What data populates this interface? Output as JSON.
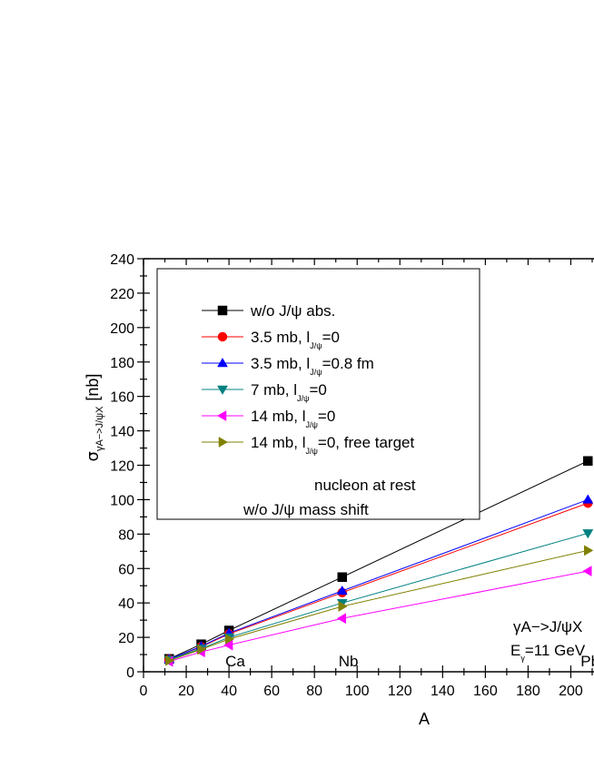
{
  "chart_data": {
    "type": "line",
    "xlabel": "A",
    "ylabel_main": "σ",
    "ylabel_sub": "γA−>J/ψX",
    "ylabel_unit": "[nb]",
    "xlim": [
      0,
      220
    ],
    "ylim": [
      0,
      240
    ],
    "xticks": [
      0,
      20,
      40,
      60,
      80,
      100,
      120,
      140,
      160,
      180,
      200
    ],
    "yticks": [
      0,
      20,
      40,
      60,
      80,
      100,
      120,
      140,
      160,
      180,
      200,
      220,
      240
    ],
    "grid": false,
    "legend_position": "top-left",
    "x": [
      12,
      27,
      40,
      93,
      208
    ],
    "series": [
      {
        "name": "w/o J/ψ abs.",
        "values": [
          7.5,
          16,
          24,
          55,
          122.5
        ],
        "color": "#000000",
        "marker": "square"
      },
      {
        "name": "3.5 mb, l_J/ψ=0",
        "values": [
          7.2,
          14.5,
          22,
          46,
          98
        ],
        "color": "#ff0000",
        "marker": "circle"
      },
      {
        "name": "3.5 mb, l_J/ψ=0.8 fm",
        "values": [
          7.2,
          14.8,
          22.5,
          47,
          100
        ],
        "color": "#0000ff",
        "marker": "triangle-up"
      },
      {
        "name": "7 mb, l_J/ψ=0",
        "values": [
          7,
          13.5,
          20,
          40,
          80.5
        ],
        "color": "#008080",
        "marker": "triangle-down"
      },
      {
        "name": "14 mb, l_J/ψ=0",
        "values": [
          6,
          11.5,
          15.5,
          31,
          58.5
        ],
        "color": "#ff00ff",
        "marker": "triangle-left"
      },
      {
        "name": "14 mb, l_J/ψ=0, free target",
        "values": [
          6.5,
          13,
          19,
          38,
          70.5
        ],
        "color": "#808000",
        "marker": "triangle-right"
      }
    ],
    "legend_entries": [
      {
        "pre": "w/o J/ψ abs.",
        "sub": "",
        "post": ""
      },
      {
        "pre": "3.5 mb, l",
        "sub": "J/ψ",
        "post": "=0"
      },
      {
        "pre": "3.5 mb, l",
        "sub": "J/ψ",
        "post": "=0.8 fm"
      },
      {
        "pre": "7 mb, l",
        "sub": "J/ψ",
        "post": "=0"
      },
      {
        "pre": "14 mb, l",
        "sub": "J/ψ",
        "post": "=0"
      },
      {
        "pre": "14 mb, l",
        "sub": "J/ψ",
        "post": "=0, free target"
      }
    ],
    "legend_extra_1": "nucleon at rest",
    "legend_extra_2": "w/o J/ψ mass shift",
    "element_labels": [
      "Ca",
      "Nb",
      "Pb"
    ],
    "reaction_label": "γA−>J/ψX",
    "energy_main": "E",
    "energy_sub": "γ",
    "energy_value": "=11 GeV"
  }
}
